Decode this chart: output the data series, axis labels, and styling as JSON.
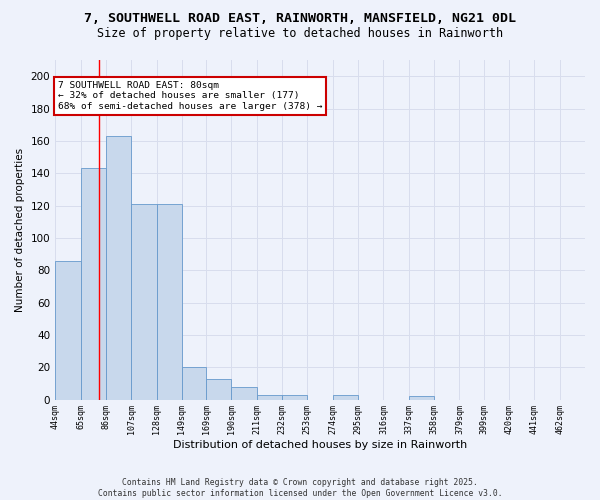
{
  "title_line1": "7, SOUTHWELL ROAD EAST, RAINWORTH, MANSFIELD, NG21 0DL",
  "title_line2": "Size of property relative to detached houses in Rainworth",
  "xlabel": "Distribution of detached houses by size in Rainworth",
  "ylabel": "Number of detached properties",
  "bar_color": "#c8d8ec",
  "bar_edge_color": "#6699cc",
  "bin_labels": [
    "44sqm",
    "65sqm",
    "86sqm",
    "107sqm",
    "128sqm",
    "149sqm",
    "169sqm",
    "190sqm",
    "211sqm",
    "232sqm",
    "253sqm",
    "274sqm",
    "295sqm",
    "316sqm",
    "337sqm",
    "358sqm",
    "379sqm",
    "399sqm",
    "420sqm",
    "441sqm",
    "462sqm"
  ],
  "bar_heights": [
    86,
    143,
    163,
    121,
    121,
    20,
    13,
    8,
    3,
    3,
    0,
    3,
    0,
    0,
    2,
    0,
    0,
    0,
    0,
    0,
    0
  ],
  "red_line_x": 80,
  "bin_edges": [
    44,
    65,
    86,
    107,
    128,
    149,
    169,
    190,
    211,
    232,
    253,
    274,
    295,
    316,
    337,
    358,
    379,
    399,
    420,
    441,
    462,
    483
  ],
  "annotation_line1": "7 SOUTHWELL ROAD EAST: 80sqm",
  "annotation_line2": "← 32% of detached houses are smaller (177)",
  "annotation_line3": "68% of semi-detached houses are larger (378) →",
  "annotation_box_color": "#ffffff",
  "annotation_box_edge": "#cc0000",
  "grid_color": "#d8dded",
  "background_color": "#eef2fb",
  "footer_line1": "Contains HM Land Registry data © Crown copyright and database right 2025.",
  "footer_line2": "Contains public sector information licensed under the Open Government Licence v3.0.",
  "ylim": [
    0,
    210
  ],
  "yticks": [
    0,
    20,
    40,
    60,
    80,
    100,
    120,
    140,
    160,
    180,
    200
  ]
}
